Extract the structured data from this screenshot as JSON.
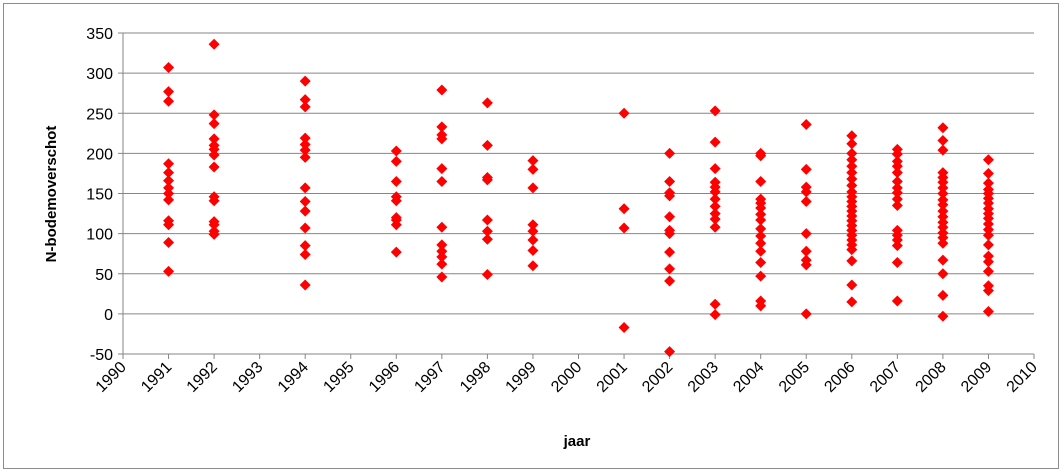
{
  "chart_data": {
    "type": "scatter",
    "xlabel": "jaar",
    "ylabel": "N-bodemoverschot",
    "xlim": [
      1990,
      2010
    ],
    "ylim": [
      -50,
      350
    ],
    "x_ticks": [
      "1990",
      "1991",
      "1992",
      "1993",
      "1994",
      "1995",
      "1996",
      "1997",
      "1998",
      "1999",
      "2000",
      "2001",
      "2002",
      "2003",
      "2004",
      "2005",
      "2006",
      "2007",
      "2008",
      "2009",
      "2010"
    ],
    "y_ticks": [
      "350",
      "300",
      "250",
      "200",
      "150",
      "100",
      "50",
      "0",
      "-50"
    ],
    "grid": "horizontal",
    "legend": "none",
    "marker_color": "#FF0000",
    "marker": "diamond",
    "points": [
      [
        1991,
        307
      ],
      [
        1991,
        277
      ],
      [
        1991,
        265
      ],
      [
        1991,
        187
      ],
      [
        1991,
        176
      ],
      [
        1991,
        166
      ],
      [
        1991,
        157
      ],
      [
        1991,
        150
      ],
      [
        1991,
        142
      ],
      [
        1991,
        116
      ],
      [
        1991,
        111
      ],
      [
        1991,
        89
      ],
      [
        1991,
        53
      ],
      [
        1992,
        336
      ],
      [
        1992,
        248
      ],
      [
        1992,
        237
      ],
      [
        1992,
        218
      ],
      [
        1992,
        210
      ],
      [
        1992,
        205
      ],
      [
        1992,
        198
      ],
      [
        1992,
        183
      ],
      [
        1992,
        146
      ],
      [
        1992,
        141
      ],
      [
        1992,
        115
      ],
      [
        1992,
        111
      ],
      [
        1992,
        103
      ],
      [
        1992,
        99
      ],
      [
        1994,
        290
      ],
      [
        1994,
        267
      ],
      [
        1994,
        258
      ],
      [
        1994,
        219
      ],
      [
        1994,
        211
      ],
      [
        1994,
        204
      ],
      [
        1994,
        195
      ],
      [
        1994,
        157
      ],
      [
        1994,
        140
      ],
      [
        1994,
        128
      ],
      [
        1994,
        107
      ],
      [
        1994,
        85
      ],
      [
        1994,
        74
      ],
      [
        1994,
        36
      ],
      [
        1996,
        203
      ],
      [
        1996,
        190
      ],
      [
        1996,
        165
      ],
      [
        1996,
        146
      ],
      [
        1996,
        141
      ],
      [
        1996,
        120
      ],
      [
        1996,
        117
      ],
      [
        1996,
        111
      ],
      [
        1996,
        77
      ],
      [
        1997,
        279
      ],
      [
        1997,
        233
      ],
      [
        1997,
        223
      ],
      [
        1997,
        218
      ],
      [
        1997,
        181
      ],
      [
        1997,
        165
      ],
      [
        1997,
        108
      ],
      [
        1997,
        86
      ],
      [
        1997,
        78
      ],
      [
        1997,
        71
      ],
      [
        1997,
        62
      ],
      [
        1997,
        46
      ],
      [
        1998,
        263
      ],
      [
        1998,
        210
      ],
      [
        1998,
        170
      ],
      [
        1998,
        167
      ],
      [
        1998,
        117
      ],
      [
        1998,
        103
      ],
      [
        1998,
        93
      ],
      [
        1998,
        49
      ],
      [
        1999,
        191
      ],
      [
        1999,
        180
      ],
      [
        1999,
        157
      ],
      [
        1999,
        111
      ],
      [
        1999,
        103
      ],
      [
        1999,
        92
      ],
      [
        1999,
        79
      ],
      [
        1999,
        60
      ],
      [
        2001,
        250
      ],
      [
        2001,
        131
      ],
      [
        2001,
        107
      ],
      [
        2001,
        -17
      ],
      [
        2002,
        200
      ],
      [
        2002,
        165
      ],
      [
        2002,
        151
      ],
      [
        2002,
        147
      ],
      [
        2002,
        121
      ],
      [
        2002,
        104
      ],
      [
        2002,
        100
      ],
      [
        2002,
        77
      ],
      [
        2002,
        56
      ],
      [
        2002,
        41
      ],
      [
        2002,
        -47
      ],
      [
        2003,
        253
      ],
      [
        2003,
        214
      ],
      [
        2003,
        181
      ],
      [
        2003,
        164
      ],
      [
        2003,
        158
      ],
      [
        2003,
        152
      ],
      [
        2003,
        143
      ],
      [
        2003,
        134
      ],
      [
        2003,
        125
      ],
      [
        2003,
        118
      ],
      [
        2003,
        108
      ],
      [
        2003,
        12
      ],
      [
        2003,
        -1
      ],
      [
        2004,
        200
      ],
      [
        2004,
        197
      ],
      [
        2004,
        165
      ],
      [
        2004,
        143
      ],
      [
        2004,
        138
      ],
      [
        2004,
        132
      ],
      [
        2004,
        124
      ],
      [
        2004,
        117
      ],
      [
        2004,
        106
      ],
      [
        2004,
        97
      ],
      [
        2004,
        88
      ],
      [
        2004,
        78
      ],
      [
        2004,
        64
      ],
      [
        2004,
        47
      ],
      [
        2004,
        16
      ],
      [
        2004,
        10
      ],
      [
        2005,
        236
      ],
      [
        2005,
        180
      ],
      [
        2005,
        158
      ],
      [
        2005,
        152
      ],
      [
        2005,
        140
      ],
      [
        2005,
        100
      ],
      [
        2005,
        78
      ],
      [
        2005,
        67
      ],
      [
        2005,
        61
      ],
      [
        2005,
        0
      ],
      [
        2006,
        222
      ],
      [
        2006,
        212
      ],
      [
        2006,
        200
      ],
      [
        2006,
        192
      ],
      [
        2006,
        184
      ],
      [
        2006,
        176
      ],
      [
        2006,
        168
      ],
      [
        2006,
        160
      ],
      [
        2006,
        152
      ],
      [
        2006,
        146
      ],
      [
        2006,
        140
      ],
      [
        2006,
        134
      ],
      [
        2006,
        128
      ],
      [
        2006,
        122
      ],
      [
        2006,
        116
      ],
      [
        2006,
        110
      ],
      [
        2006,
        104
      ],
      [
        2006,
        98
      ],
      [
        2006,
        92
      ],
      [
        2006,
        86
      ],
      [
        2006,
        80
      ],
      [
        2006,
        66
      ],
      [
        2006,
        36
      ],
      [
        2006,
        15
      ],
      [
        2007,
        205
      ],
      [
        2007,
        199
      ],
      [
        2007,
        190
      ],
      [
        2007,
        184
      ],
      [
        2007,
        176
      ],
      [
        2007,
        165
      ],
      [
        2007,
        157
      ],
      [
        2007,
        151
      ],
      [
        2007,
        143
      ],
      [
        2007,
        135
      ],
      [
        2007,
        104
      ],
      [
        2007,
        98
      ],
      [
        2007,
        92
      ],
      [
        2007,
        85
      ],
      [
        2007,
        64
      ],
      [
        2007,
        16
      ],
      [
        2008,
        232
      ],
      [
        2008,
        216
      ],
      [
        2008,
        204
      ],
      [
        2008,
        176
      ],
      [
        2008,
        170
      ],
      [
        2008,
        164
      ],
      [
        2008,
        157
      ],
      [
        2008,
        150
      ],
      [
        2008,
        142
      ],
      [
        2008,
        136
      ],
      [
        2008,
        128
      ],
      [
        2008,
        121
      ],
      [
        2008,
        114
      ],
      [
        2008,
        108
      ],
      [
        2008,
        101
      ],
      [
        2008,
        95
      ],
      [
        2008,
        88
      ],
      [
        2008,
        67
      ],
      [
        2008,
        50
      ],
      [
        2008,
        23
      ],
      [
        2008,
        -3
      ],
      [
        2009,
        192
      ],
      [
        2009,
        175
      ],
      [
        2009,
        163
      ],
      [
        2009,
        155
      ],
      [
        2009,
        150
      ],
      [
        2009,
        144
      ],
      [
        2009,
        138
      ],
      [
        2009,
        131
      ],
      [
        2009,
        125
      ],
      [
        2009,
        119
      ],
      [
        2009,
        112
      ],
      [
        2009,
        105
      ],
      [
        2009,
        98
      ],
      [
        2009,
        86
      ],
      [
        2009,
        72
      ],
      [
        2009,
        65
      ],
      [
        2009,
        53
      ],
      [
        2009,
        35
      ],
      [
        2009,
        29
      ],
      [
        2009,
        3
      ]
    ]
  }
}
